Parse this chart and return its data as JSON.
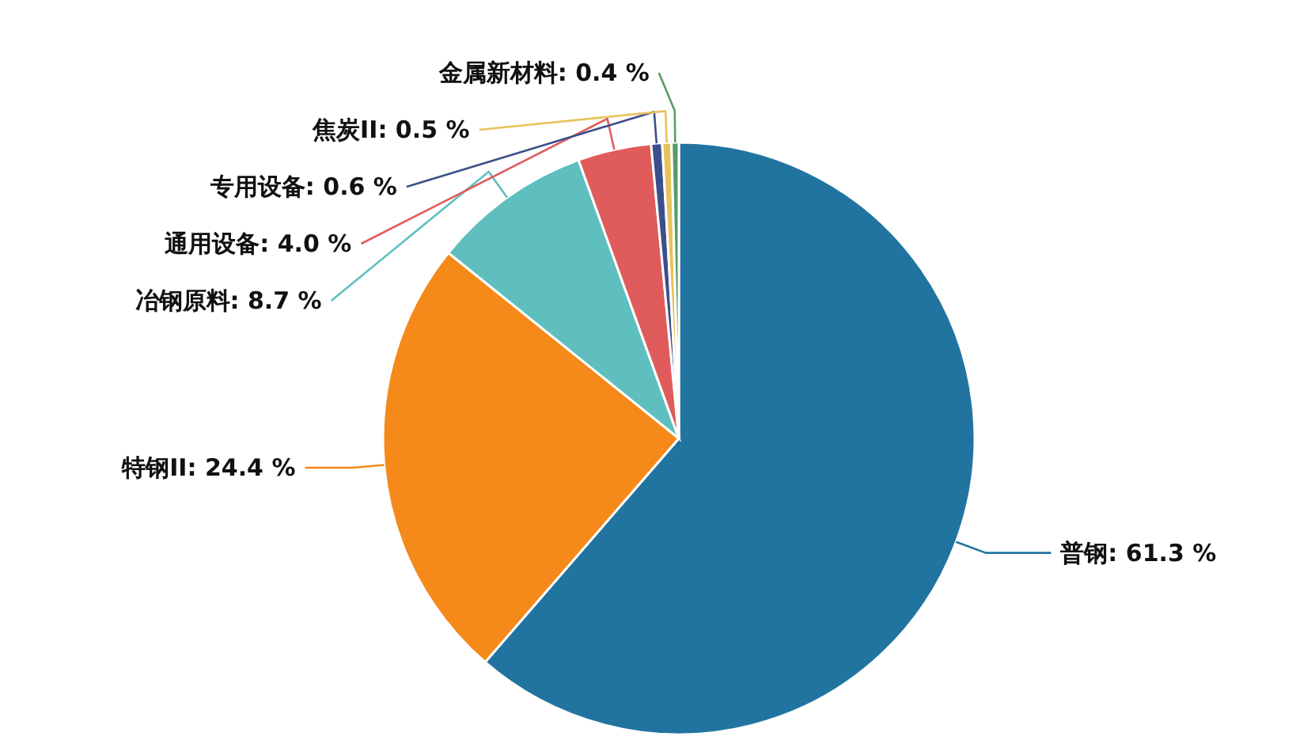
{
  "chart_data": {
    "type": "pie",
    "categories": [
      "普钢",
      "特钢II",
      "冶钢原料",
      "通用设备",
      "专用设备",
      "焦炭II",
      "金属新材料"
    ],
    "values": [
      61.3,
      24.4,
      8.7,
      4.0,
      0.6,
      0.5,
      0.4
    ],
    "value_labels": [
      "61.3 %",
      "24.4 %",
      "8.7 %",
      "4.0 %",
      "0.6 %",
      "0.5 %",
      "0.4 %"
    ],
    "colors": [
      "#2274a0",
      "#f5891a",
      "#5fbfbf",
      "#e05c5c",
      "#3d4f8a",
      "#e8c25a",
      "#5a9a6a"
    ]
  }
}
